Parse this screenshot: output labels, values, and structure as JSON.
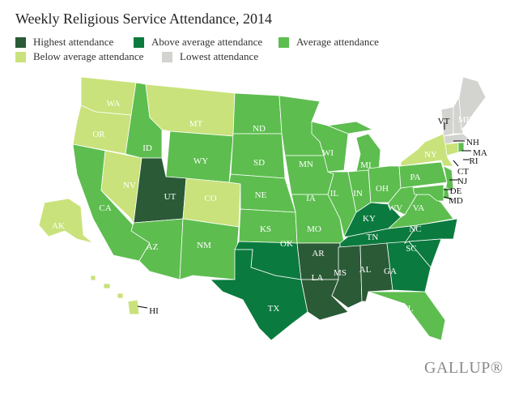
{
  "title": "Weekly Religious Service Attendance, 2014",
  "legend": [
    {
      "key": "highest",
      "label": "Highest attendance",
      "color": "#2b5a36"
    },
    {
      "key": "above",
      "label": "Above average attendance",
      "color": "#0b7a3e"
    },
    {
      "key": "average",
      "label": "Average attendance",
      "color": "#5dbd4f"
    },
    {
      "key": "below",
      "label": "Below average attendance",
      "color": "#c9e27b"
    },
    {
      "key": "lowest",
      "label": "Lowest attendance",
      "color": "#d3d3d0"
    }
  ],
  "states": {
    "highest": [
      "UT",
      "AR",
      "LA",
      "MS",
      "AL"
    ],
    "above": [
      "OK",
      "TX",
      "KY",
      "TN",
      "NC",
      "SC",
      "GA"
    ],
    "average": [
      "CA",
      "AZ",
      "NM",
      "ID",
      "WY",
      "ND",
      "SD",
      "NE",
      "KS",
      "MN",
      "IA",
      "MO",
      "WI",
      "IL",
      "MI",
      "IN",
      "OH",
      "PA",
      "WV",
      "VA",
      "NJ",
      "DE",
      "MD",
      "FL",
      "RI"
    ],
    "below": [
      "WA",
      "OR",
      "NV",
      "MT",
      "CO",
      "NY",
      "AK",
      "HI",
      "CT"
    ],
    "lowest": [
      "VT",
      "NH",
      "ME",
      "MA"
    ]
  },
  "logo": "GALLUP®"
}
